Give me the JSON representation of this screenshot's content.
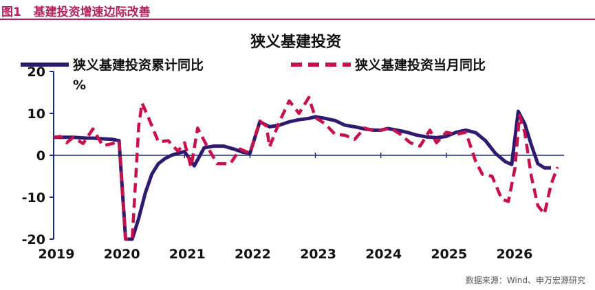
{
  "figure": {
    "label": "图1",
    "title": "基建投资增速边际改善"
  },
  "source": "数据来源：Wind、申万宏源研究",
  "colors": {
    "header": "#b0215a",
    "axis": "#1a2c7a",
    "cumulative": "#2e1a6e",
    "monthly": "#c8104d",
    "text": "#111111"
  },
  "chart_data": {
    "type": "line",
    "title": "狭义基建投资",
    "ylabel": "%",
    "ylim": [
      -20,
      20
    ],
    "yticks": [
      -20,
      -10,
      0,
      10,
      20
    ],
    "xlim": [
      2019.0,
      2026.8
    ],
    "xticks": [
      {
        "label": "2019",
        "x": 2019.0
      },
      {
        "label": "2020",
        "x": 2020.0
      },
      {
        "label": "2021",
        "x": 2021.0
      },
      {
        "label": "2022",
        "x": 2022.0
      },
      {
        "label": "2023",
        "x": 2023.0
      },
      {
        "label": "2024",
        "x": 2024.0
      },
      {
        "label": "2025",
        "x": 2025.0
      },
      {
        "label": "2026",
        "x": 2026.0
      }
    ],
    "legend_position": "top",
    "series": [
      {
        "name": "狭义基建投资累计同比",
        "style": "solid",
        "points": [
          [
            2019.0,
            4.3
          ],
          [
            2019.1,
            4.3
          ],
          [
            2019.2,
            4.3
          ],
          [
            2019.3,
            4.3
          ],
          [
            2019.4,
            4.2
          ],
          [
            2019.5,
            4.1
          ],
          [
            2019.6,
            4.1
          ],
          [
            2019.7,
            4.0
          ],
          [
            2019.8,
            3.9
          ],
          [
            2019.9,
            3.8
          ],
          [
            2020.0,
            3.5
          ],
          [
            2020.1,
            -20.0
          ],
          [
            2020.2,
            -20.0
          ],
          [
            2020.3,
            -15.0
          ],
          [
            2020.4,
            -9.0
          ],
          [
            2020.5,
            -4.5
          ],
          [
            2020.6,
            -2.0
          ],
          [
            2020.7,
            -0.8
          ],
          [
            2020.8,
            0.0
          ],
          [
            2020.9,
            0.5
          ],
          [
            2021.0,
            0.9
          ],
          [
            2021.15,
            -2.5
          ],
          [
            2021.3,
            1.8
          ],
          [
            2021.45,
            2.2
          ],
          [
            2021.6,
            2.2
          ],
          [
            2021.75,
            1.5
          ],
          [
            2021.9,
            0.7
          ],
          [
            2022.0,
            0.5
          ],
          [
            2022.15,
            8.0
          ],
          [
            2022.3,
            6.8
          ],
          [
            2022.45,
            7.2
          ],
          [
            2022.6,
            8.0
          ],
          [
            2022.75,
            8.5
          ],
          [
            2022.9,
            8.8
          ],
          [
            2023.0,
            9.2
          ],
          [
            2023.15,
            8.8
          ],
          [
            2023.3,
            8.3
          ],
          [
            2023.45,
            7.2
          ],
          [
            2023.6,
            6.8
          ],
          [
            2023.75,
            6.3
          ],
          [
            2023.9,
            6.0
          ],
          [
            2024.0,
            6.0
          ],
          [
            2024.1,
            6.4
          ],
          [
            2024.25,
            6.0
          ],
          [
            2024.4,
            5.5
          ],
          [
            2024.55,
            4.8
          ],
          [
            2024.7,
            4.4
          ],
          [
            2024.85,
            4.2
          ],
          [
            2025.0,
            4.5
          ],
          [
            2025.15,
            5.5
          ],
          [
            2025.3,
            6.0
          ],
          [
            2025.45,
            5.4
          ],
          [
            2025.6,
            3.5
          ],
          [
            2025.75,
            0.5
          ],
          [
            2025.9,
            -1.5
          ],
          [
            2026.0,
            -2.2
          ],
          [
            2026.1,
            10.5
          ],
          [
            2026.2,
            7.5
          ],
          [
            2026.3,
            2.5
          ],
          [
            2026.4,
            -2.0
          ],
          [
            2026.5,
            -3.0
          ],
          [
            2026.6,
            -3.0
          ]
        ]
      },
      {
        "name": "狭义基建投资当月同比",
        "style": "dashed",
        "points": [
          [
            2019.0,
            4.3
          ],
          [
            2019.1,
            4.5
          ],
          [
            2019.2,
            3.0
          ],
          [
            2019.3,
            4.3
          ],
          [
            2019.45,
            2.8
          ],
          [
            2019.6,
            6.3
          ],
          [
            2019.75,
            2.3
          ],
          [
            2019.9,
            2.8
          ],
          [
            2020.0,
            3.5
          ],
          [
            2020.1,
            -20.0
          ],
          [
            2020.2,
            -20.0
          ],
          [
            2020.3,
            7.0
          ],
          [
            2020.35,
            12.5
          ],
          [
            2020.45,
            9.0
          ],
          [
            2020.6,
            3.2
          ],
          [
            2020.75,
            3.5
          ],
          [
            2020.9,
            1.0
          ],
          [
            2021.0,
            3.0
          ],
          [
            2021.1,
            -2.8
          ],
          [
            2021.2,
            6.5
          ],
          [
            2021.35,
            2.0
          ],
          [
            2021.5,
            -2.0
          ],
          [
            2021.6,
            -2.0
          ],
          [
            2021.7,
            -2.0
          ],
          [
            2021.85,
            1.5
          ],
          [
            2022.0,
            0.5
          ],
          [
            2022.15,
            8.2
          ],
          [
            2022.25,
            7.0
          ],
          [
            2022.3,
            2.0
          ],
          [
            2022.45,
            8.0
          ],
          [
            2022.6,
            13.0
          ],
          [
            2022.75,
            10.0
          ],
          [
            2022.9,
            13.8
          ],
          [
            2023.0,
            9.0
          ],
          [
            2023.15,
            7.5
          ],
          [
            2023.3,
            5.0
          ],
          [
            2023.45,
            4.8
          ],
          [
            2023.6,
            3.8
          ],
          [
            2023.75,
            6.5
          ],
          [
            2023.9,
            5.8
          ],
          [
            2024.0,
            6.0
          ],
          [
            2024.15,
            6.5
          ],
          [
            2024.3,
            5.0
          ],
          [
            2024.45,
            3.0
          ],
          [
            2024.6,
            2.2
          ],
          [
            2024.75,
            6.0
          ],
          [
            2024.85,
            3.0
          ],
          [
            2025.0,
            5.5
          ],
          [
            2025.15,
            5.0
          ],
          [
            2025.3,
            5.5
          ],
          [
            2025.45,
            -1.5
          ],
          [
            2025.55,
            -4.5
          ],
          [
            2025.7,
            -5.0
          ],
          [
            2025.85,
            -10.5
          ],
          [
            2025.95,
            -11.0
          ],
          [
            2026.05,
            -3.0
          ],
          [
            2026.12,
            9.5
          ],
          [
            2026.2,
            5.5
          ],
          [
            2026.3,
            -5.0
          ],
          [
            2026.4,
            -12.0
          ],
          [
            2026.5,
            -14.0
          ],
          [
            2026.6,
            -7.0
          ],
          [
            2026.7,
            -2.8
          ]
        ]
      }
    ]
  }
}
